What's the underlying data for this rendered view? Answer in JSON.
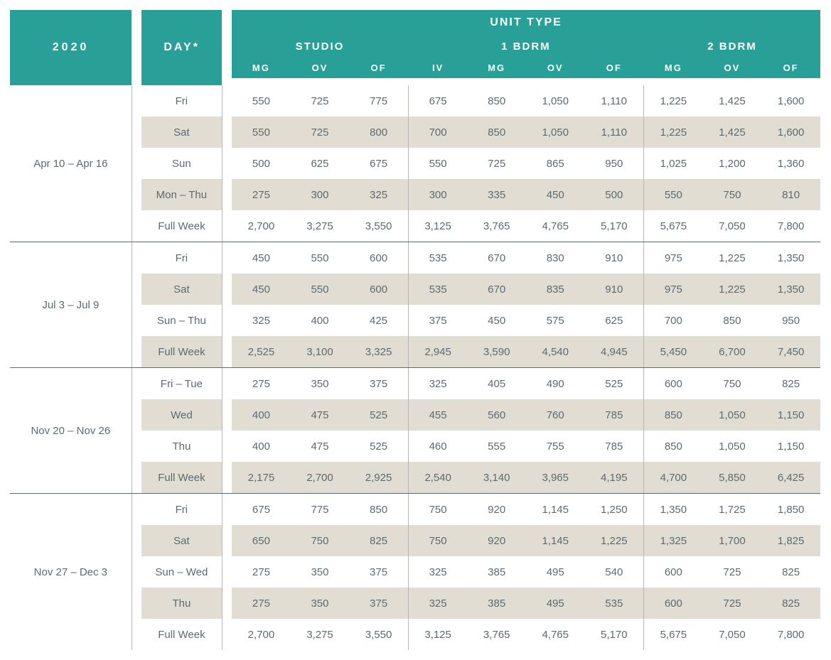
{
  "header": {
    "year": "2020",
    "day": "DAY*",
    "unit_type": "UNIT TYPE",
    "groups": [
      {
        "label": "STUDIO",
        "cols": [
          "MG",
          "OV",
          "OF"
        ]
      },
      {
        "label": "1 BDRM",
        "cols": [
          "IV",
          "MG",
          "OV",
          "OF"
        ]
      },
      {
        "label": "2 BDRM",
        "cols": [
          "MG",
          "OV",
          "OF"
        ]
      }
    ]
  },
  "colors": {
    "header_bg": "#289f97",
    "header_fg": "#ffffff",
    "shade_bg": "#e2ddd2",
    "text": "#5c6a70",
    "rule": "#b7b6b0"
  },
  "blocks": [
    {
      "range": "Apr 10 – Apr 16",
      "rows": [
        {
          "day": "Fri",
          "v": [
            "550",
            "725",
            "775",
            "675",
            "850",
            "1,050",
            "1,110",
            "1,225",
            "1,425",
            "1,600"
          ]
        },
        {
          "day": "Sat",
          "v": [
            "550",
            "725",
            "800",
            "700",
            "850",
            "1,050",
            "1,110",
            "1,225",
            "1,425",
            "1,600"
          ],
          "shade": true
        },
        {
          "day": "Sun",
          "v": [
            "500",
            "625",
            "675",
            "550",
            "725",
            "865",
            "950",
            "1,025",
            "1,200",
            "1,360"
          ]
        },
        {
          "day": "Mon – Thu",
          "v": [
            "275",
            "300",
            "325",
            "300",
            "335",
            "450",
            "500",
            "550",
            "750",
            "810"
          ],
          "shade": true
        },
        {
          "day": "Full Week",
          "v": [
            "2,700",
            "3,275",
            "3,550",
            "3,125",
            "3,765",
            "4,765",
            "5,170",
            "5,675",
            "7,050",
            "7,800"
          ]
        }
      ]
    },
    {
      "range": "Jul 3 – Jul 9",
      "rows": [
        {
          "day": "Fri",
          "v": [
            "450",
            "550",
            "600",
            "535",
            "670",
            "830",
            "910",
            "975",
            "1,225",
            "1,350"
          ]
        },
        {
          "day": "Sat",
          "v": [
            "450",
            "550",
            "600",
            "535",
            "670",
            "835",
            "910",
            "975",
            "1,225",
            "1,350"
          ],
          "shade": true
        },
        {
          "day": "Sun – Thu",
          "v": [
            "325",
            "400",
            "425",
            "375",
            "450",
            "575",
            "625",
            "700",
            "850",
            "950"
          ]
        },
        {
          "day": "Full Week",
          "v": [
            "2,525",
            "3,100",
            "3,325",
            "2,945",
            "3,590",
            "4,540",
            "4,945",
            "5,450",
            "6,700",
            "7,450"
          ],
          "shade": true
        }
      ]
    },
    {
      "range": "Nov 20 – Nov 26",
      "rows": [
        {
          "day": "Fri – Tue",
          "v": [
            "275",
            "350",
            "375",
            "325",
            "405",
            "490",
            "525",
            "600",
            "750",
            "825"
          ]
        },
        {
          "day": "Wed",
          "v": [
            "400",
            "475",
            "525",
            "455",
            "560",
            "760",
            "785",
            "850",
            "1,050",
            "1,150"
          ],
          "shade": true
        },
        {
          "day": "Thu",
          "v": [
            "400",
            "475",
            "525",
            "460",
            "555",
            "755",
            "785",
            "850",
            "1,050",
            "1,150"
          ]
        },
        {
          "day": "Full Week",
          "v": [
            "2,175",
            "2,700",
            "2,925",
            "2,540",
            "3,140",
            "3,965",
            "4,195",
            "4,700",
            "5,850",
            "6,425"
          ],
          "shade": true
        }
      ]
    },
    {
      "range": "Nov 27 – Dec 3",
      "rows": [
        {
          "day": "Fri",
          "v": [
            "675",
            "775",
            "850",
            "750",
            "920",
            "1,145",
            "1,250",
            "1,350",
            "1,725",
            "1,850"
          ]
        },
        {
          "day": "Sat",
          "v": [
            "650",
            "750",
            "825",
            "750",
            "920",
            "1,145",
            "1,225",
            "1,325",
            "1,700",
            "1,825"
          ],
          "shade": true
        },
        {
          "day": "Sun – Wed",
          "v": [
            "275",
            "350",
            "375",
            "325",
            "385",
            "495",
            "540",
            "600",
            "725",
            "825"
          ]
        },
        {
          "day": "Thu",
          "v": [
            "275",
            "350",
            "375",
            "325",
            "385",
            "495",
            "535",
            "600",
            "725",
            "825"
          ],
          "shade": true
        },
        {
          "day": "Full Week",
          "v": [
            "2,700",
            "3,275",
            "3,550",
            "3,125",
            "3,765",
            "4,765",
            "5,170",
            "5,675",
            "7,050",
            "7,800"
          ]
        }
      ]
    }
  ]
}
